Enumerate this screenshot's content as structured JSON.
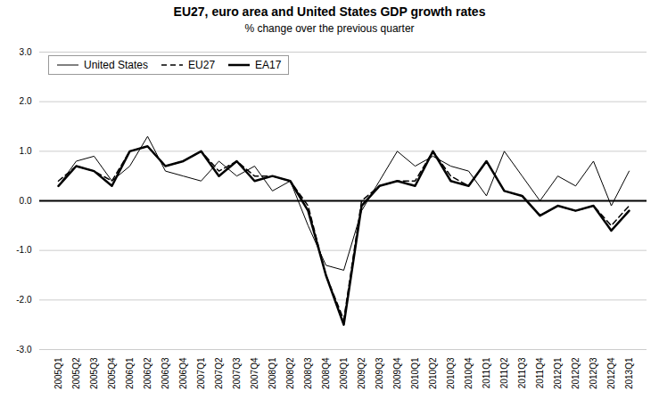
{
  "chart_data": {
    "type": "line",
    "title": "EU27, euro area and United States GDP growth rates",
    "subtitle": "% change over the previous quarter",
    "categories": [
      "2005Q1",
      "2005Q2",
      "2005Q3",
      "2005Q4",
      "2006Q1",
      "2006Q2",
      "2006Q3",
      "2006Q4",
      "2007Q1",
      "2007Q2",
      "2007Q3",
      "2007Q4",
      "2008Q1",
      "2008Q2",
      "2008Q3",
      "2008Q4",
      "2009Q1",
      "2009Q2",
      "2009Q3",
      "2009Q4",
      "2010Q1",
      "2010Q2",
      "2010Q3",
      "2010Q4",
      "2011Q1",
      "2011Q2",
      "2011Q3",
      "2011Q4",
      "2012Q1",
      "2012Q2",
      "2012Q3",
      "2012Q4",
      "2013Q1"
    ],
    "series": [
      {
        "name": "United States",
        "color": "#000000",
        "line_style": "solid",
        "values": [
          0.3,
          0.8,
          0.9,
          0.4,
          0.7,
          1.3,
          0.6,
          0.5,
          0.4,
          0.8,
          0.5,
          0.7,
          0.2,
          0.4,
          -0.5,
          -1.3,
          -1.4,
          -0.2,
          0.4,
          1.0,
          0.7,
          0.9,
          0.7,
          0.6,
          0.1,
          1.0,
          0.5,
          0.0,
          0.5,
          0.3,
          0.8,
          -0.1,
          0.6
        ]
      },
      {
        "name": "EU27",
        "color": "#000000",
        "line_style": "dashed",
        "values": [
          0.4,
          0.7,
          0.6,
          0.4,
          1.0,
          1.1,
          0.7,
          0.8,
          1.0,
          0.6,
          0.8,
          0.5,
          0.5,
          0.4,
          -0.1,
          -1.5,
          -2.4,
          0.0,
          0.3,
          0.4,
          0.4,
          1.0,
          0.5,
          0.3,
          0.8,
          0.2,
          0.1,
          -0.3,
          -0.1,
          -0.2,
          -0.1,
          -0.5,
          -0.1
        ]
      },
      {
        "name": "EA17",
        "color": "#000000",
        "line_style": "solid",
        "values": [
          0.3,
          0.7,
          0.6,
          0.3,
          1.0,
          1.1,
          0.7,
          0.8,
          1.0,
          0.5,
          0.8,
          0.4,
          0.5,
          0.4,
          -0.2,
          -1.5,
          -2.5,
          -0.1,
          0.3,
          0.4,
          0.3,
          1.0,
          0.4,
          0.3,
          0.8,
          0.2,
          0.1,
          -0.3,
          -0.1,
          -0.2,
          -0.1,
          -0.6,
          -0.2
        ]
      }
    ],
    "ylim": [
      -3.0,
      3.0
    ],
    "yticks": [
      {
        "value": -3.0,
        "label": "-3.0"
      },
      {
        "value": -2.0,
        "label": "-2.0"
      },
      {
        "value": -1.0,
        "label": "-1.0"
      },
      {
        "value": 0.0,
        "label": "0.0"
      },
      {
        "value": 1.0,
        "label": "1.0"
      },
      {
        "value": 2.0,
        "label": "2.0"
      },
      {
        "value": 3.0,
        "label": "3.0"
      }
    ],
    "grid": true,
    "legend": "upper left"
  }
}
